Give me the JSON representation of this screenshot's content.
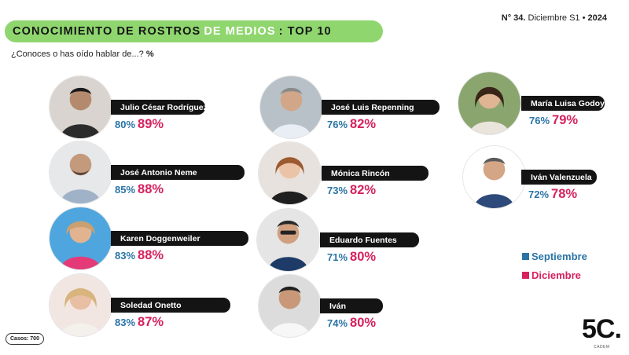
{
  "header": {
    "title_part1": "CONOCIMIENTO DE ROSTROS",
    "title_highlight": "DE MEDIOS",
    "title_part2": ": TOP 10",
    "subtitle_text": "¿Conoces o has oído hablar de...?",
    "subtitle_unit": "%",
    "issue_prefix": "N°",
    "issue_number": "34.",
    "issue_period": "Diciembre S1 •",
    "issue_year": "2024"
  },
  "people": [
    {
      "name": "Julio César Rodríguez",
      "sep": "80%",
      "dic": "89%",
      "photo_icon": "portrait-photo"
    },
    {
      "name": "José Antonio Neme",
      "sep": "85%",
      "dic": "88%",
      "photo_icon": "portrait-photo"
    },
    {
      "name": "Karen Doggenweiler",
      "sep": "83%",
      "dic": "88%",
      "photo_icon": "portrait-photo"
    },
    {
      "name": "Soledad Onetto",
      "sep": "83%",
      "dic": "87%",
      "photo_icon": "portrait-photo"
    },
    {
      "name": "José Luis Repenning",
      "sep": "76%",
      "dic": "82%",
      "photo_icon": "portrait-photo"
    },
    {
      "name": "Mónica Rincón",
      "sep": "73%",
      "dic": "82%",
      "photo_icon": "portrait-photo"
    },
    {
      "name": "Eduardo Fuentes",
      "sep": "71%",
      "dic": "80%",
      "photo_icon": "portrait-photo"
    },
    {
      "name": "Iván",
      "sep": "74%",
      "dic": "80%",
      "photo_icon": "portrait-photo"
    },
    {
      "name": "María Luisa Godoy",
      "sep": "76%",
      "dic": "79%",
      "photo_icon": "portrait-photo"
    },
    {
      "name": "Iván Valenzuela",
      "sep": "72%",
      "dic": "78%",
      "photo_icon": "portrait-photo"
    }
  ],
  "legend": {
    "september_label": "Septiembre",
    "december_label": "Diciembre",
    "september_color": "#2a74a6",
    "december_color": "#d6215e"
  },
  "footer": {
    "casos": "Casos: 700",
    "logo_text": "5C.",
    "logo_sub": "CADEM"
  }
}
